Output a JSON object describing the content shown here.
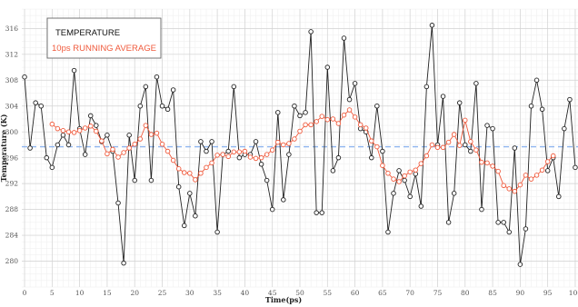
{
  "chart_data": {
    "type": "line",
    "title": "",
    "xlabel": "Time(ps)",
    "ylabel": "Temperature (K)",
    "xlim": [
      -0.5,
      100.5
    ],
    "ylim": [
      276,
      319
    ],
    "x_ticks": [
      0,
      5,
      10,
      15,
      20,
      25,
      30,
      35,
      40,
      45,
      50,
      55,
      60,
      65,
      70,
      75,
      80,
      85,
      90,
      95,
      100
    ],
    "y_ticks": [
      280,
      284,
      288,
      292,
      296,
      300,
      304,
      308,
      312,
      316
    ],
    "grid": true,
    "legend_position": "top-left",
    "reference_line": {
      "y": 297.7,
      "color": "#8eb5ef",
      "style": "dashed"
    },
    "series": [
      {
        "name": "TEMPERATURE",
        "color": "#222222",
        "x": [
          0,
          1,
          2,
          3,
          4,
          5,
          6,
          7,
          8,
          9,
          10,
          11,
          12,
          13,
          14,
          15,
          16,
          17,
          18,
          19,
          20,
          21,
          22,
          23,
          24,
          25,
          26,
          27,
          28,
          29,
          30,
          31,
          32,
          33,
          34,
          35,
          36,
          37,
          38,
          39,
          40,
          41,
          42,
          43,
          44,
          45,
          46,
          47,
          48,
          49,
          50,
          51,
          52,
          53,
          54,
          55,
          56,
          57,
          58,
          59,
          60,
          61,
          62,
          63,
          64,
          65,
          66,
          67,
          68,
          69,
          70,
          71,
          72,
          73,
          74,
          75,
          76,
          77,
          78,
          79,
          80,
          81,
          82,
          83,
          84,
          85,
          86,
          87,
          88,
          89,
          90,
          91,
          92,
          93,
          94,
          95,
          96,
          97,
          98,
          99,
          100
        ],
        "values": [
          308.5,
          297.5,
          304.5,
          304.0,
          296.0,
          294.5,
          298.0,
          299.5,
          298.0,
          309.5,
          300.5,
          296.5,
          302.5,
          301.0,
          298.5,
          299.5,
          297.0,
          289.0,
          279.7,
          299.5,
          292.5,
          304.0,
          307.0,
          292.5,
          308.5,
          304.0,
          303.5,
          306.5,
          291.5,
          285.5,
          290.5,
          287.0,
          298.5,
          297.0,
          298.5,
          284.5,
          296.5,
          297.0,
          307.0,
          296.0,
          296.5,
          296.5,
          298.5,
          295.0,
          292.5,
          288.0,
          303.0,
          289.5,
          296.5,
          304.0,
          302.5,
          303.0,
          315.5,
          287.5,
          287.5,
          310.0,
          294.0,
          296.0,
          314.5,
          305.0,
          307.5,
          300.5,
          300.0,
          296.0,
          304.0,
          297.0,
          284.5,
          290.5,
          294.0,
          292.5,
          290.0,
          293.5,
          288.5,
          307.0,
          316.5,
          298.0,
          305.5,
          286.0,
          290.5,
          304.5,
          298.0,
          297.0,
          307.5,
          288.0,
          301.0,
          300.5,
          286.0,
          286.0,
          284.5,
          297.5,
          279.5,
          285.0,
          304.0,
          308.0,
          303.5,
          294.0,
          296.0,
          290.0,
          300.5,
          305.0,
          294.5
        ]
      },
      {
        "name": "10ps RUNNING AVERAGE",
        "color": "#f05a3c",
        "x": [
          5,
          6,
          7,
          8,
          9,
          10,
          11,
          12,
          13,
          14,
          15,
          16,
          17,
          18,
          19,
          20,
          21,
          22,
          23,
          24,
          25,
          26,
          27,
          28,
          29,
          30,
          31,
          32,
          33,
          34,
          35,
          36,
          37,
          38,
          39,
          40,
          41,
          42,
          43,
          44,
          45,
          46,
          47,
          48,
          49,
          50,
          51,
          52,
          53,
          54,
          55,
          56,
          57,
          58,
          59,
          60,
          61,
          62,
          63,
          64,
          65,
          66,
          67,
          68,
          69,
          70,
          71,
          72,
          73,
          74,
          75,
          76,
          77,
          78,
          79,
          80,
          81,
          82,
          83,
          84,
          85,
          86,
          87,
          88,
          89,
          90,
          91,
          92,
          93,
          94,
          95,
          96
        ],
        "values": [
          301.2,
          300.5,
          300.2,
          300.0,
          299.9,
          300.2,
          300.6,
          300.9,
          300.1,
          298.6,
          296.6,
          297.3,
          296.1,
          296.8,
          297.5,
          298.1,
          298.9,
          301.0,
          299.6,
          299.8,
          298.1,
          297.0,
          295.6,
          294.3,
          293.7,
          293.6,
          292.6,
          293.6,
          294.5,
          295.2,
          296.4,
          296.5,
          296.2,
          296.9,
          296.9,
          297.0,
          296.1,
          295.9,
          296.0,
          296.5,
          297.2,
          298.4,
          298.0,
          298.2,
          298.9,
          300.1,
          301.1,
          301.1,
          301.6,
          302.4,
          301.9,
          302.0,
          301.3,
          302.6,
          303.4,
          302.3,
          301.1,
          300.6,
          298.6,
          297.7,
          294.8,
          293.6,
          292.7,
          292.3,
          293.2,
          293.8,
          294.1,
          295.1,
          296.3,
          298.0,
          297.6,
          297.6,
          298.4,
          299.6,
          297.9,
          301.8,
          298.5,
          297.2,
          295.3,
          295.2,
          294.7,
          293.9,
          291.7,
          291.2,
          290.8,
          291.8,
          293.3,
          292.7,
          293.3,
          294.1,
          295.4,
          296.3
        ]
      }
    ]
  }
}
